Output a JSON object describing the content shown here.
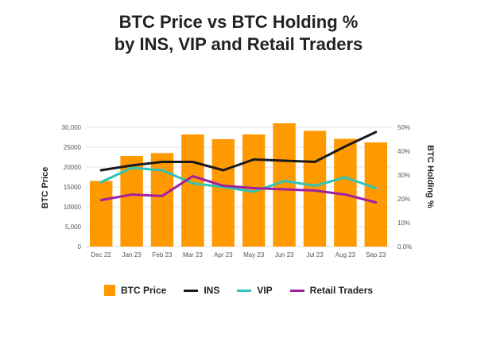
{
  "chart_data": {
    "type": "bar",
    "title_line1": "BTC Price vs BTC Holding %",
    "title_line2": "by INS, VIP and Retail Traders",
    "ylabel_left": "BTC Price",
    "ylabel_right": "BTC Holding %",
    "categories": [
      "Dec 22",
      "Jan 23",
      "Feb 23",
      "Mar 23",
      "Apr 23",
      "May 23",
      "Jun 23",
      "Jul 23",
      "Aug 23",
      "Sep 23"
    ],
    "left_ylim": [
      0,
      30000
    ],
    "left_ticks": [
      "0",
      "5,000",
      "10000",
      "15000",
      "20000",
      "25000",
      "30,000"
    ],
    "right_ylim": [
      0,
      50
    ],
    "right_ticks": [
      "0.0%",
      "10%",
      "20%",
      "30%",
      "40%",
      "50%"
    ],
    "bars": {
      "name": "BTC Price",
      "color": "#FF9900",
      "values": [
        16500,
        22800,
        23500,
        28200,
        27000,
        28200,
        31000,
        29100,
        27100,
        26200
      ]
    },
    "series": [
      {
        "name": "INS",
        "color": "#1a1a1a",
        "values": [
          32,
          34,
          35.5,
          35.5,
          32,
          36.5,
          36,
          35.5,
          42,
          48
        ]
      },
      {
        "name": "VIP",
        "color": "#2EC4B6",
        "values": [
          27,
          33,
          32,
          26.5,
          25,
          23,
          27.5,
          25.5,
          29,
          24.5
        ]
      },
      {
        "name": "Retail Traders",
        "color": "#A020A0",
        "values": [
          19.5,
          21.8,
          21.2,
          29.5,
          25.5,
          24.5,
          24,
          23.5,
          21.8,
          18.5
        ]
      }
    ],
    "grid": true,
    "legend": "bottom"
  }
}
